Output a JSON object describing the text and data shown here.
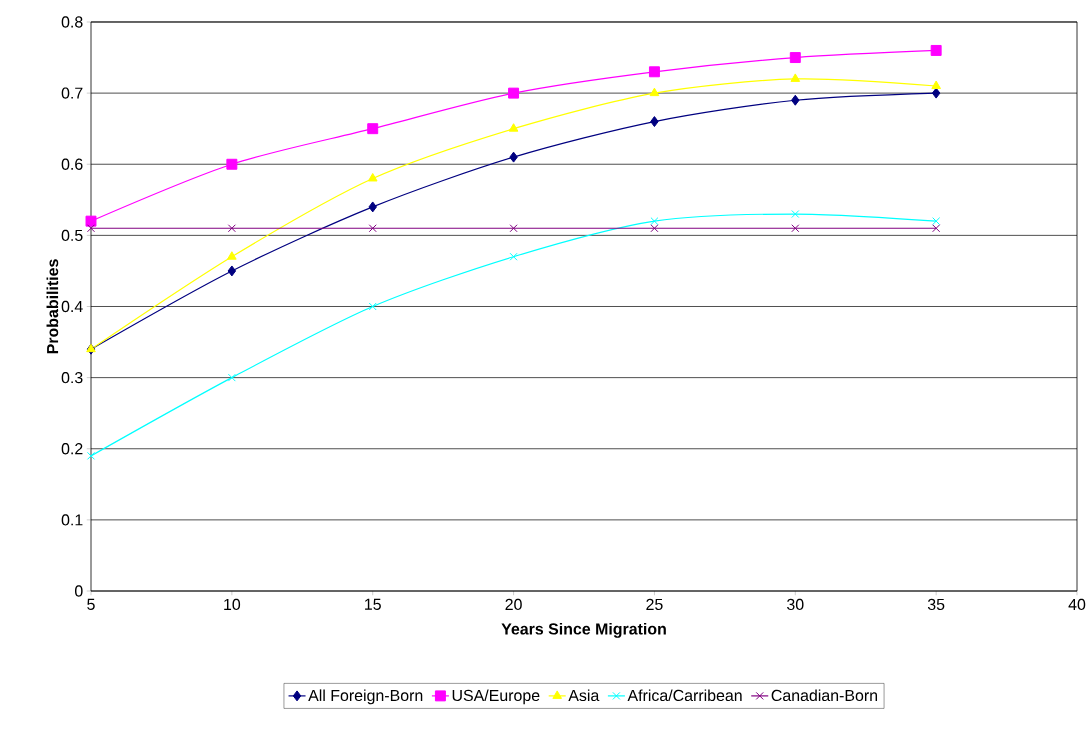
{
  "chart_data": {
    "type": "line",
    "xlabel": "Years Since Migration",
    "ylabel": "Probabilities",
    "x": [
      5,
      10,
      15,
      20,
      25,
      30,
      35
    ],
    "xlim": [
      5,
      40
    ],
    "xticks": [
      5,
      10,
      15,
      20,
      25,
      30,
      35,
      40
    ],
    "ylim": [
      0,
      0.8
    ],
    "yticks": [
      0,
      0.1,
      0.2,
      0.3,
      0.4,
      0.5,
      0.6,
      0.7,
      0.8
    ],
    "grid": "y",
    "legend": "bottom",
    "line_style": "solid",
    "series": [
      {
        "name": "All Foreign-Born",
        "color": "#000080",
        "marker": "diamond",
        "values": [
          0.34,
          0.45,
          0.54,
          0.61,
          0.66,
          0.69,
          0.7
        ]
      },
      {
        "name": "USA/Europe",
        "color": "#ff00ff",
        "marker": "square",
        "values": [
          0.52,
          0.6,
          0.65,
          0.7,
          0.73,
          0.75,
          0.76
        ]
      },
      {
        "name": "Asia",
        "color": "#ffff00",
        "marker": "triangle",
        "values": [
          0.34,
          0.47,
          0.58,
          0.65,
          0.7,
          0.72,
          0.71
        ]
      },
      {
        "name": "Africa/Carribean",
        "color": "#00ffff",
        "marker": "cross",
        "values": [
          0.19,
          0.3,
          0.4,
          0.47,
          0.52,
          0.53,
          0.52
        ]
      },
      {
        "name": "Canadian-Born",
        "color": "#800080",
        "marker": "cross",
        "values": [
          0.51,
          0.51,
          0.51,
          0.51,
          0.51,
          0.51,
          0.51
        ]
      }
    ]
  }
}
